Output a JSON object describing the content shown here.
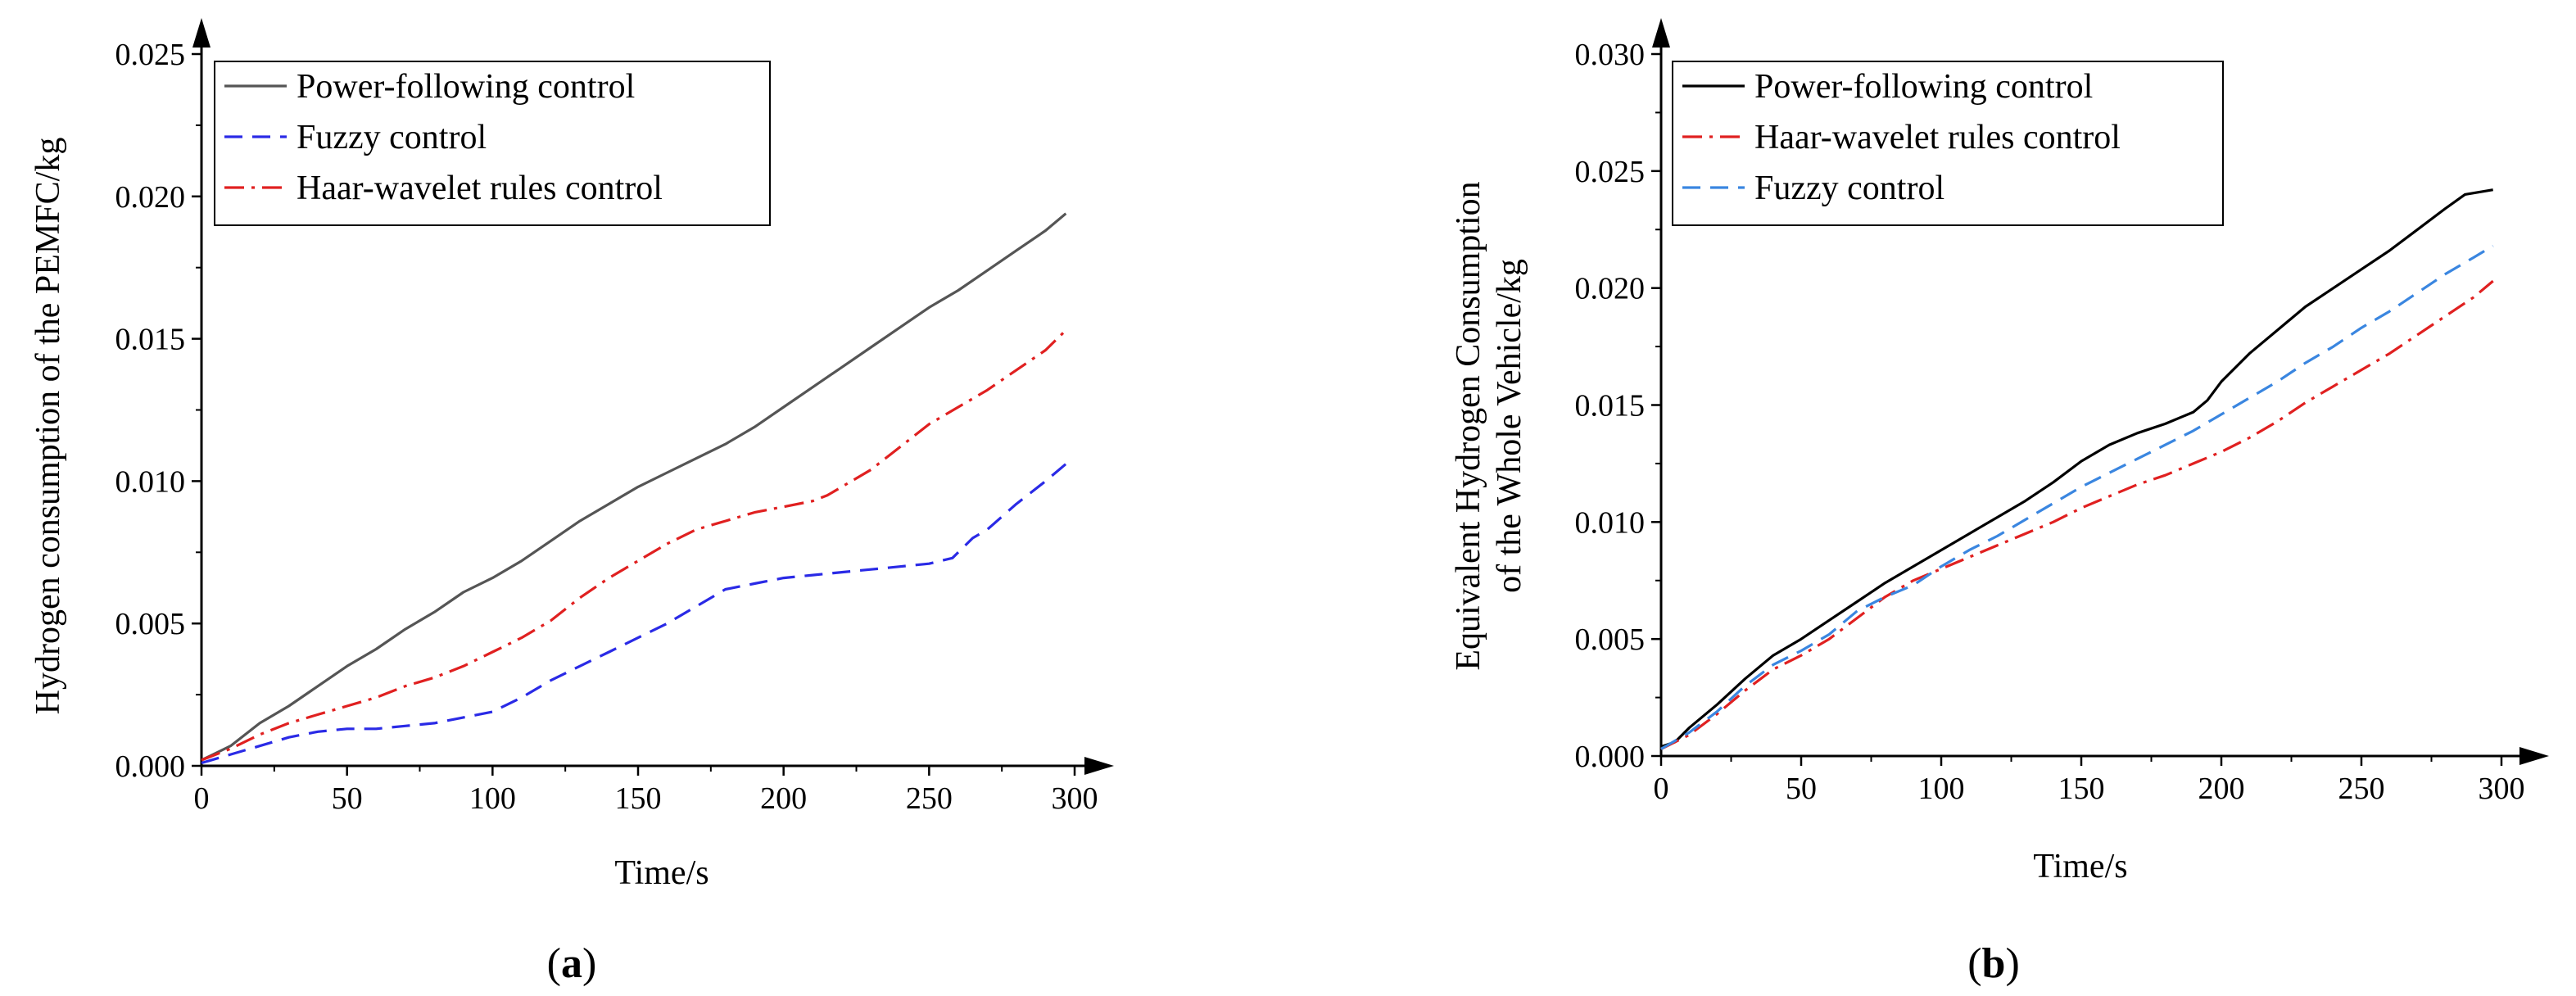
{
  "chart_data": [
    {
      "type": "line",
      "panel_label": "a",
      "xlabel": "Time/s",
      "ylabel": "Hydrogen consumption of the PEMFC/kg",
      "xlim": [
        0,
        300
      ],
      "ylim": [
        0,
        0.025
      ],
      "xticks": [
        "0",
        "50",
        "100",
        "150",
        "200",
        "250",
        "300"
      ],
      "yticks": [
        "0.000",
        "0.005",
        "0.010",
        "0.015",
        "0.020",
        "0.025"
      ],
      "legend_position": "top-left",
      "series": [
        {
          "name": "Power-following control",
          "color": "#555555",
          "dash": "solid",
          "x": [
            0,
            10,
            20,
            30,
            40,
            50,
            60,
            70,
            80,
            90,
            100,
            110,
            120,
            130,
            140,
            150,
            160,
            170,
            180,
            190,
            200,
            210,
            220,
            230,
            240,
            250,
            260,
            270,
            280,
            290,
            297
          ],
          "y": [
            0.0002,
            0.0007,
            0.0015,
            0.0021,
            0.0028,
            0.0035,
            0.0041,
            0.0048,
            0.0054,
            0.0061,
            0.0066,
            0.0072,
            0.0079,
            0.0086,
            0.0092,
            0.0098,
            0.0103,
            0.0108,
            0.0113,
            0.0119,
            0.0126,
            0.0133,
            0.014,
            0.0147,
            0.0154,
            0.0161,
            0.0167,
            0.0174,
            0.0181,
            0.0188,
            0.0194
          ]
        },
        {
          "name": "Fuzzy control",
          "color": "#2a2ae6",
          "dash": "dashed",
          "x": [
            0,
            10,
            20,
            30,
            40,
            50,
            60,
            70,
            80,
            90,
            100,
            110,
            120,
            130,
            140,
            150,
            160,
            170,
            180,
            190,
            200,
            210,
            220,
            230,
            240,
            250,
            258,
            265,
            270,
            280,
            290,
            297
          ],
          "y": [
            0.0001,
            0.0004,
            0.0007,
            0.001,
            0.0012,
            0.0013,
            0.0013,
            0.0014,
            0.0015,
            0.0017,
            0.0019,
            0.0024,
            0.003,
            0.0035,
            0.004,
            0.0045,
            0.005,
            0.0056,
            0.0062,
            0.0064,
            0.0066,
            0.0067,
            0.0068,
            0.0069,
            0.007,
            0.0071,
            0.0073,
            0.008,
            0.0083,
            0.0092,
            0.01,
            0.0106
          ]
        },
        {
          "name": "Haar-wavelet rules control",
          "color": "#e02020",
          "dash": "dashdot",
          "x": [
            0,
            10,
            20,
            30,
            40,
            50,
            60,
            70,
            80,
            90,
            100,
            110,
            120,
            130,
            140,
            150,
            160,
            170,
            180,
            190,
            200,
            210,
            215,
            230,
            240,
            250,
            260,
            270,
            280,
            290,
            297
          ],
          "y": [
            0.0002,
            0.0006,
            0.0011,
            0.0015,
            0.0018,
            0.0021,
            0.0024,
            0.0028,
            0.0031,
            0.0035,
            0.004,
            0.0045,
            0.0051,
            0.0059,
            0.0066,
            0.0072,
            0.0078,
            0.0083,
            0.0086,
            0.0089,
            0.0091,
            0.0093,
            0.0095,
            0.0104,
            0.0112,
            0.012,
            0.0126,
            0.0132,
            0.0139,
            0.0146,
            0.0153
          ]
        }
      ]
    },
    {
      "type": "line",
      "panel_label": "b",
      "xlabel": "Time/s",
      "ylabel": "Equivalent Hydrogen Consumption of the Whole Vehicle/kg",
      "ylabel_lines": [
        "Equivalent Hydrogen Consumption",
        "of the Whole Vehicle/kg"
      ],
      "xlim": [
        0,
        300
      ],
      "ylim": [
        0,
        0.03
      ],
      "xticks": [
        "0",
        "50",
        "100",
        "150",
        "200",
        "250",
        "300"
      ],
      "yticks": [
        "0.000",
        "0.005",
        "0.010",
        "0.015",
        "0.020",
        "0.025",
        "0.030"
      ],
      "legend_position": "top-left",
      "series": [
        {
          "name": "Power-following control",
          "color": "#000000",
          "dash": "solid",
          "x": [
            0,
            5,
            10,
            20,
            30,
            40,
            50,
            60,
            70,
            80,
            90,
            100,
            110,
            120,
            130,
            140,
            150,
            160,
            170,
            180,
            190,
            195,
            200,
            210,
            220,
            230,
            240,
            250,
            260,
            270,
            280,
            287,
            297
          ],
          "y": [
            0.0004,
            0.0006,
            0.0012,
            0.0022,
            0.0033,
            0.0043,
            0.005,
            0.0058,
            0.0066,
            0.0074,
            0.0081,
            0.0088,
            0.0095,
            0.0102,
            0.0109,
            0.0117,
            0.0126,
            0.0133,
            0.0138,
            0.0142,
            0.0147,
            0.0152,
            0.016,
            0.0172,
            0.0182,
            0.0192,
            0.02,
            0.0208,
            0.0216,
            0.0225,
            0.0234,
            0.024,
            0.0242
          ]
        },
        {
          "name": "Haar-wavelet rules control",
          "color": "#e02020",
          "dash": "dashdot",
          "x": [
            0,
            10,
            20,
            30,
            40,
            50,
            60,
            70,
            80,
            90,
            100,
            110,
            120,
            130,
            140,
            150,
            160,
            170,
            180,
            190,
            200,
            210,
            220,
            230,
            240,
            250,
            260,
            270,
            280,
            290,
            297
          ],
          "y": [
            0.0003,
            0.0009,
            0.0018,
            0.0028,
            0.0037,
            0.0043,
            0.005,
            0.0059,
            0.0068,
            0.0075,
            0.008,
            0.0085,
            0.009,
            0.0095,
            0.01,
            0.0106,
            0.0111,
            0.0116,
            0.012,
            0.0125,
            0.013,
            0.0136,
            0.0143,
            0.0151,
            0.0158,
            0.0165,
            0.0172,
            0.018,
            0.0188,
            0.0196,
            0.0203
          ]
        },
        {
          "name": "Fuzzy control",
          "color": "#3a86e0",
          "dash": "dashed",
          "x": [
            0,
            10,
            20,
            30,
            40,
            50,
            60,
            70,
            80,
            90,
            100,
            110,
            120,
            130,
            140,
            150,
            160,
            170,
            180,
            190,
            200,
            210,
            220,
            230,
            240,
            250,
            260,
            270,
            280,
            290,
            297
          ],
          "y": [
            0.0003,
            0.001,
            0.0019,
            0.003,
            0.0039,
            0.0045,
            0.0052,
            0.0062,
            0.0068,
            0.0073,
            0.0081,
            0.0088,
            0.0094,
            0.0101,
            0.0108,
            0.0115,
            0.0121,
            0.0127,
            0.0133,
            0.0139,
            0.0146,
            0.0153,
            0.016,
            0.0168,
            0.0175,
            0.0183,
            0.019,
            0.0198,
            0.0206,
            0.0213,
            0.0218
          ]
        }
      ]
    }
  ]
}
